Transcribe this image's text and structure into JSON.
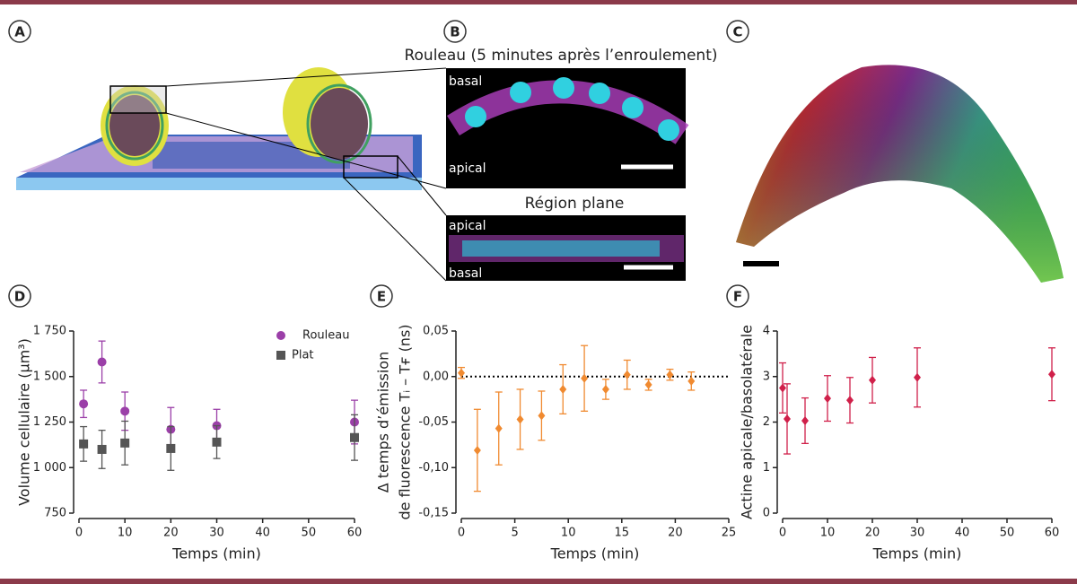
{
  "panel_labels": [
    "A",
    "B",
    "C"
  ],
  "image_b": {
    "title": "Rouleau (5 minutes après l’enroulement)",
    "top_labels": [
      "basal",
      "apical"
    ],
    "subtitle": "Région plane",
    "bottom_labels": [
      "apical",
      "basal"
    ]
  },
  "chart_data": [
    {
      "type": "scatter",
      "label": "D",
      "x_label": "Temps (min)",
      "y_label": [
        "Volume cellulaire (µm³)"
      ],
      "xlim": [
        0,
        60
      ],
      "xticks": [
        0,
        10,
        20,
        30,
        40,
        50,
        60
      ],
      "ylim": [
        750,
        1750
      ],
      "yticks": [
        750,
        {
          "value": 1000,
          "label": "1 000"
        },
        {
          "value": 1250,
          "label": "1 250"
        },
        {
          "value": 1500,
          "label": "1 500"
        },
        {
          "value": 1750,
          "label": "1 750"
        }
      ],
      "legend": "top-right",
      "series": [
        {
          "name": "Rouleau",
          "color": "#9b3fa8",
          "marker": "circle",
          "x": [
            1,
            5,
            10,
            20,
            30,
            60
          ],
          "values": [
            1350,
            1580,
            1310,
            1210,
            1230,
            1250
          ],
          "errors": [
            75,
            115,
            105,
            120,
            90,
            120
          ]
        },
        {
          "name": "Plat",
          "color": "#555555",
          "marker": "square",
          "x": [
            1,
            5,
            10,
            20,
            30,
            60
          ],
          "values": [
            1130,
            1100,
            1135,
            1105,
            1140,
            1165
          ],
          "errors": [
            95,
            105,
            120,
            120,
            90,
            125
          ]
        }
      ]
    },
    {
      "type": "scatter",
      "label": "E",
      "x_label": "Temps (min)",
      "y_label": [
        "Δ temps d’émission",
        "de fluorescence Tᵢ – Tғ (ns)"
      ],
      "xlim": [
        0,
        25
      ],
      "xticks": [
        0,
        5,
        10,
        15,
        20,
        25
      ],
      "ylim": [
        -0.15,
        0.05
      ],
      "yticks": [
        {
          "value": -0.15,
          "label": "-0,15"
        },
        {
          "value": -0.1,
          "label": "-0,10"
        },
        {
          "value": -0.05,
          "label": "-0,05"
        },
        {
          "value": 0,
          "label": "0,00"
        },
        {
          "value": 0.05,
          "label": "0,05"
        }
      ],
      "reference_line": 0,
      "series": [
        {
          "color": "#f08a30",
          "marker": "diamond",
          "x": [
            0,
            1.5,
            3.5,
            5.5,
            7.5,
            9.5,
            11.5,
            13.5,
            15.5,
            17.5,
            19.5,
            21.5
          ],
          "values": [
            0.004,
            -0.081,
            -0.057,
            -0.047,
            -0.043,
            -0.014,
            -0.002,
            -0.014,
            0.002,
            -0.009,
            0.002,
            -0.005
          ],
          "errors": [
            0.006,
            0.045,
            0.04,
            0.033,
            0.027,
            0.027,
            0.036,
            0.011,
            0.016,
            0.006,
            0.006,
            0.01
          ]
        }
      ]
    },
    {
      "type": "scatter",
      "label": "F",
      "x_label": "Temps (min)",
      "y_label": [
        "Actine apicale/basolatérale"
      ],
      "xlim": [
        0,
        60
      ],
      "xticks": [
        0,
        10,
        20,
        30,
        40,
        50,
        60
      ],
      "ylim": [
        0,
        4
      ],
      "yticks": [
        0,
        1,
        2,
        3,
        4
      ],
      "series": [
        {
          "color": "#d0204a",
          "marker": "diamond",
          "x": [
            0,
            1,
            5,
            10,
            15,
            20,
            30,
            60
          ],
          "values": [
            2.75,
            2.07,
            2.03,
            2.52,
            2.48,
            2.92,
            2.98,
            3.05
          ],
          "errors": [
            0.55,
            0.77,
            0.5,
            0.5,
            0.5,
            0.5,
            0.65,
            0.58
          ]
        }
      ]
    }
  ]
}
